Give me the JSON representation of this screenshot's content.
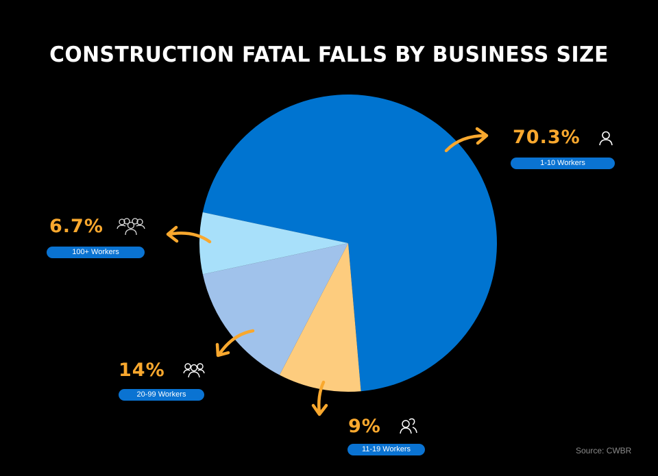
{
  "title": "CONSTRUCTION FATAL FALLS BY BUSINESS SIZE",
  "source": "Source: CWBR",
  "colors": {
    "background": "#000000",
    "accent_orange": "#F9A82E",
    "badge_blue": "#0A73D2"
  },
  "labels": {
    "w1_10": {
      "percent": "70.3%",
      "badge": "1-10 Workers",
      "icon": "single-person-icon"
    },
    "w100": {
      "percent": "6.7%",
      "badge": "100+ Workers",
      "icon": "crowd-icon"
    },
    "w20_99": {
      "percent": "14%",
      "badge": "20-99 Workers",
      "icon": "group-icon"
    },
    "w11_19": {
      "percent": "9%",
      "badge": "11-19 Workers",
      "icon": "pair-icon"
    }
  },
  "chart_data": {
    "type": "pie",
    "title": "CONSTRUCTION FATAL FALLS BY BUSINESS SIZE",
    "categories": [
      "1-10 Workers",
      "11-19 Workers",
      "20-99 Workers",
      "100+ Workers"
    ],
    "values": [
      70.3,
      9,
      14,
      6.7
    ],
    "unit": "%",
    "colors": [
      "#0074D0",
      "#FDCC7E",
      "#A0C2EB",
      "#A8E0FA"
    ],
    "start_angle_deg_clockwise_from_top": 282,
    "direction": "clockwise",
    "legend": "none (callout labels with arrows)",
    "source": "Source: CWBR"
  }
}
